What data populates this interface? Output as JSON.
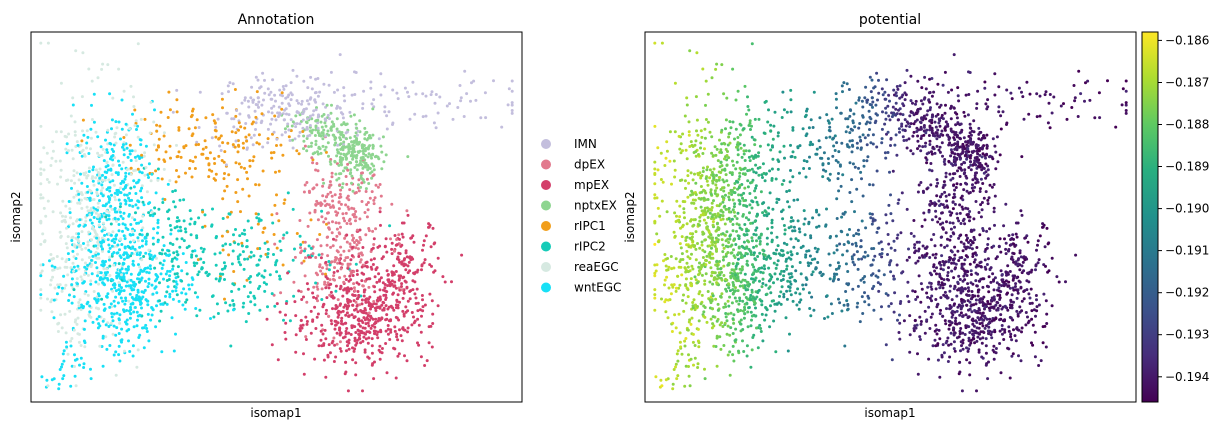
{
  "chart_data": [
    {
      "type": "scatter",
      "title": "Annotation",
      "xlabel": "isomap1",
      "ylabel": "isomap2",
      "xticks": [],
      "yticks": [],
      "xlim": [
        0,
        1
      ],
      "ylim": [
        0,
        1
      ],
      "legend_position": "right",
      "color_by": "category",
      "series": [
        {
          "name": "IMN",
          "color": "#c3bedd",
          "clusters": [
            {
              "cx": 0.55,
              "cy": 0.79,
              "sx": 0.08,
              "sy": 0.05,
              "n": 180
            },
            {
              "cx": 0.82,
              "cy": 0.82,
              "sx": 0.09,
              "sy": 0.04,
              "n": 60
            },
            {
              "cx": 0.46,
              "cy": 0.76,
              "sx": 0.06,
              "sy": 0.05,
              "n": 50
            }
          ]
        },
        {
          "name": "dpEX",
          "color": "#e2798d",
          "clusters": [
            {
              "cx": 0.62,
              "cy": 0.42,
              "sx": 0.05,
              "sy": 0.1,
              "n": 220
            },
            {
              "cx": 0.64,
              "cy": 0.55,
              "sx": 0.04,
              "sy": 0.05,
              "n": 80
            }
          ]
        },
        {
          "name": "mpEX",
          "color": "#d33f6a",
          "clusters": [
            {
              "cx": 0.67,
              "cy": 0.22,
              "sx": 0.07,
              "sy": 0.06,
              "n": 420
            },
            {
              "cx": 0.72,
              "cy": 0.33,
              "sx": 0.05,
              "sy": 0.07,
              "n": 180
            },
            {
              "cx": 0.77,
              "cy": 0.38,
              "sx": 0.03,
              "sy": 0.05,
              "n": 60
            }
          ]
        },
        {
          "name": "nptxEX",
          "color": "#8ed590",
          "clusters": [
            {
              "cx": 0.66,
              "cy": 0.66,
              "sx": 0.03,
              "sy": 0.04,
              "n": 200
            },
            {
              "cx": 0.6,
              "cy": 0.73,
              "sx": 0.04,
              "sy": 0.03,
              "n": 110
            }
          ]
        },
        {
          "name": "rIPC1",
          "color": "#f19e1b",
          "clusters": [
            {
              "cx": 0.38,
              "cy": 0.69,
              "sx": 0.09,
              "sy": 0.06,
              "n": 170
            },
            {
              "cx": 0.46,
              "cy": 0.47,
              "sx": 0.08,
              "sy": 0.08,
              "n": 50
            }
          ]
        },
        {
          "name": "rIPC2",
          "color": "#16cbb8",
          "clusters": [
            {
              "cx": 0.4,
              "cy": 0.38,
              "sx": 0.1,
              "sy": 0.08,
              "n": 220
            },
            {
              "cx": 0.27,
              "cy": 0.45,
              "sx": 0.06,
              "sy": 0.08,
              "n": 70
            }
          ]
        },
        {
          "name": "reaEGC",
          "color": "#d6e9e1",
          "clusters": [
            {
              "cx": 0.13,
              "cy": 0.56,
              "sx": 0.06,
              "sy": 0.15,
              "n": 320
            },
            {
              "cx": 0.1,
              "cy": 0.32,
              "sx": 0.05,
              "sy": 0.1,
              "n": 140
            }
          ]
        },
        {
          "name": "wntEGC",
          "color": "#18e0f6",
          "clusters": [
            {
              "cx": 0.17,
              "cy": 0.55,
              "sx": 0.04,
              "sy": 0.11,
              "n": 330
            },
            {
              "cx": 0.2,
              "cy": 0.33,
              "sx": 0.07,
              "sy": 0.06,
              "n": 320
            },
            {
              "cx": 0.18,
              "cy": 0.2,
              "sx": 0.04,
              "sy": 0.06,
              "n": 90
            },
            {
              "cx": 0.07,
              "cy": 0.08,
              "sx": 0.02,
              "sy": 0.04,
              "n": 30
            }
          ]
        }
      ]
    },
    {
      "type": "scatter",
      "title": "potential",
      "xlabel": "isomap1",
      "ylabel": "isomap2",
      "xticks": [],
      "yticks": [],
      "xlim": [
        0,
        1
      ],
      "ylim": [
        0,
        1
      ],
      "color_by": "continuous",
      "colormap": "viridis",
      "colorbar": {
        "vmin": -0.1946,
        "vmax": -0.1858,
        "ticks": [
          -0.186,
          -0.187,
          -0.188,
          -0.189,
          -0.19,
          -0.191,
          -0.192,
          -0.193,
          -0.194
        ],
        "tick_labels": [
          "−0.186",
          "−0.187",
          "−0.188",
          "−0.189",
          "−0.190",
          "−0.191",
          "−0.192",
          "−0.193",
          "−0.194"
        ]
      },
      "value_by_x": {
        "x": [
          0.0,
          0.15,
          0.3,
          0.45,
          0.55,
          1.0
        ],
        "v": [
          -0.1862,
          -0.1875,
          -0.19,
          -0.192,
          -0.194,
          -0.1944
        ]
      }
    }
  ]
}
